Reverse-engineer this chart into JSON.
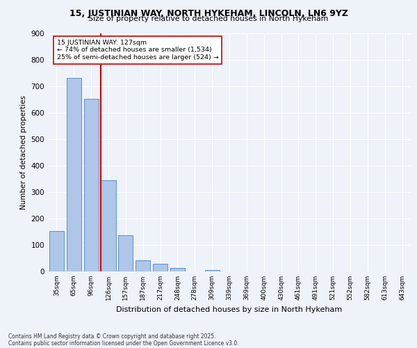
{
  "title1": "15, JUSTINIAN WAY, NORTH HYKEHAM, LINCOLN, LN6 9YZ",
  "title2": "Size of property relative to detached houses in North Hykeham",
  "xlabel": "Distribution of detached houses by size in North Hykeham",
  "ylabel": "Number of detached properties",
  "bar_labels": [
    "35sqm",
    "65sqm",
    "96sqm",
    "126sqm",
    "157sqm",
    "187sqm",
    "217sqm",
    "248sqm",
    "278sqm",
    "309sqm",
    "339sqm",
    "369sqm",
    "400sqm",
    "430sqm",
    "461sqm",
    "491sqm",
    "521sqm",
    "552sqm",
    "582sqm",
    "613sqm",
    "643sqm"
  ],
  "bar_values": [
    152,
    730,
    652,
    343,
    137,
    43,
    30,
    12,
    0,
    6,
    0,
    0,
    0,
    0,
    0,
    0,
    0,
    0,
    0,
    0,
    0
  ],
  "bar_color": "#aec6e8",
  "bar_edge_color": "#5b8fc9",
  "annotation_text": "15 JUSTINIAN WAY: 127sqm\n← 74% of detached houses are smaller (1,534)\n25% of semi-detached houses are larger (524) →",
  "annotation_box_color": "#ffffff",
  "annotation_border_color": "#cc0000",
  "vline_color": "#cc0000",
  "ylim": [
    0,
    900
  ],
  "yticks": [
    0,
    100,
    200,
    300,
    400,
    500,
    600,
    700,
    800,
    900
  ],
  "footer1": "Contains HM Land Registry data © Crown copyright and database right 2025.",
  "footer2": "Contains public sector information licensed under the Open Government Licence v3.0.",
  "bg_color": "#eef2f9",
  "plot_bg_color": "#eef2f9"
}
